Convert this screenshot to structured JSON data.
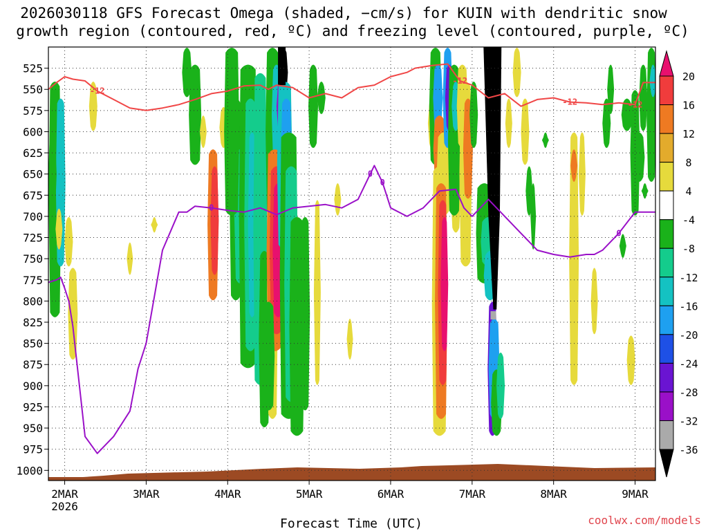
{
  "chart_data": {
    "type": "heatmap",
    "title": [
      "2026030118 GFS Forecast Omega (shaded, −cm/s) for KUIN with dendritic snow",
      "growth region (contoured, red, ºC) and freezing level (contoured, purple, ºC)"
    ],
    "xlabel": "Forecast Time (UTC)",
    "credit": "coolwx.com/models",
    "x_axis": {
      "units": "days since 2MAR 00Z",
      "range": [
        -0.2,
        7.25
      ],
      "ticks": [
        {
          "value": 0,
          "label": "2MAR",
          "sublabel": "2026"
        },
        {
          "value": 1,
          "label": "3MAR"
        },
        {
          "value": 2,
          "label": "4MAR"
        },
        {
          "value": 3,
          "label": "5MAR"
        },
        {
          "value": 4,
          "label": "6MAR"
        },
        {
          "value": 5,
          "label": "7MAR"
        },
        {
          "value": 6,
          "label": "8MAR"
        },
        {
          "value": 7,
          "label": "9MAR"
        }
      ]
    },
    "y_axis": {
      "units": "hPa",
      "range": [
        500,
        1012
      ],
      "ticks": [
        525,
        550,
        575,
        600,
        625,
        650,
        675,
        700,
        725,
        750,
        775,
        800,
        825,
        850,
        875,
        900,
        925,
        950,
        975,
        1000
      ]
    },
    "colorbar": {
      "labels": [
        "20",
        "16",
        "12",
        "8",
        "4",
        "-4",
        "-8",
        "-12",
        "-16",
        "-20",
        "-24",
        "-28",
        "-32",
        "-36"
      ],
      "colors": [
        "#e8106e",
        "#f03c3c",
        "#ee7a22",
        "#e3ab2c",
        "#e6da3c",
        "#ffffff",
        "#1ab21a",
        "#14cc8c",
        "#14c2c2",
        "#1ea0f0",
        "#1e50e6",
        "#6a14d2",
        "#9a10c8",
        "#aaaaaa",
        "#000000"
      ]
    },
    "series": [
      {
        "name": "dendritic snow growth region (-12 ºC)",
        "color": "#f04646",
        "label": "-12",
        "x": [
          -0.2,
          -0.1,
          0.0,
          0.1,
          0.25,
          0.4,
          0.6,
          0.8,
          1.0,
          1.2,
          1.4,
          1.6,
          1.8,
          2.0,
          2.2,
          2.4,
          2.5,
          2.6,
          2.8,
          3.0,
          3.2,
          3.4,
          3.6,
          3.8,
          4.0,
          4.2,
          4.3,
          4.5,
          4.7,
          4.85,
          5.0,
          5.2,
          5.4,
          5.6,
          5.8,
          6.0,
          6.2,
          6.4,
          6.6,
          6.8,
          7.0,
          7.1,
          7.25
        ],
        "y": [
          550,
          542,
          535,
          538,
          540,
          552,
          562,
          572,
          575,
          572,
          568,
          562,
          555,
          552,
          546,
          545,
          550,
          545,
          548,
          560,
          555,
          560,
          548,
          545,
          535,
          530,
          525,
          522,
          520,
          540,
          545,
          560,
          555,
          570,
          562,
          560,
          565,
          566,
          568,
          566,
          568,
          542,
          542
        ]
      },
      {
        "name": "freezing level (0 ºC)",
        "color": "#9a10c8",
        "label": "0",
        "x": [
          -0.2,
          -0.1,
          -0.05,
          0.0,
          0.05,
          0.1,
          0.25,
          0.4,
          0.6,
          0.8,
          0.9,
          1.0,
          1.2,
          1.4,
          1.5,
          1.6,
          1.8,
          2.0,
          2.2,
          2.4,
          2.6,
          2.8,
          3.0,
          3.2,
          3.4,
          3.6,
          3.75,
          3.8,
          3.9,
          4.0,
          4.2,
          4.4,
          4.6,
          4.8,
          4.9,
          5.0,
          5.2,
          5.4,
          5.6,
          5.8,
          6.0,
          6.2,
          6.4,
          6.5,
          6.6,
          6.8,
          7.0,
          7.1,
          7.25
        ],
        "y": [
          778,
          775,
          772,
          785,
          800,
          830,
          960,
          980,
          960,
          930,
          880,
          850,
          740,
          695,
          695,
          688,
          690,
          693,
          695,
          690,
          698,
          690,
          688,
          686,
          690,
          680,
          650,
          640,
          660,
          690,
          700,
          690,
          670,
          668,
          690,
          700,
          680,
          700,
          720,
          740,
          745,
          748,
          745,
          745,
          740,
          720,
          695,
          695,
          695
        ]
      }
    ]
  }
}
